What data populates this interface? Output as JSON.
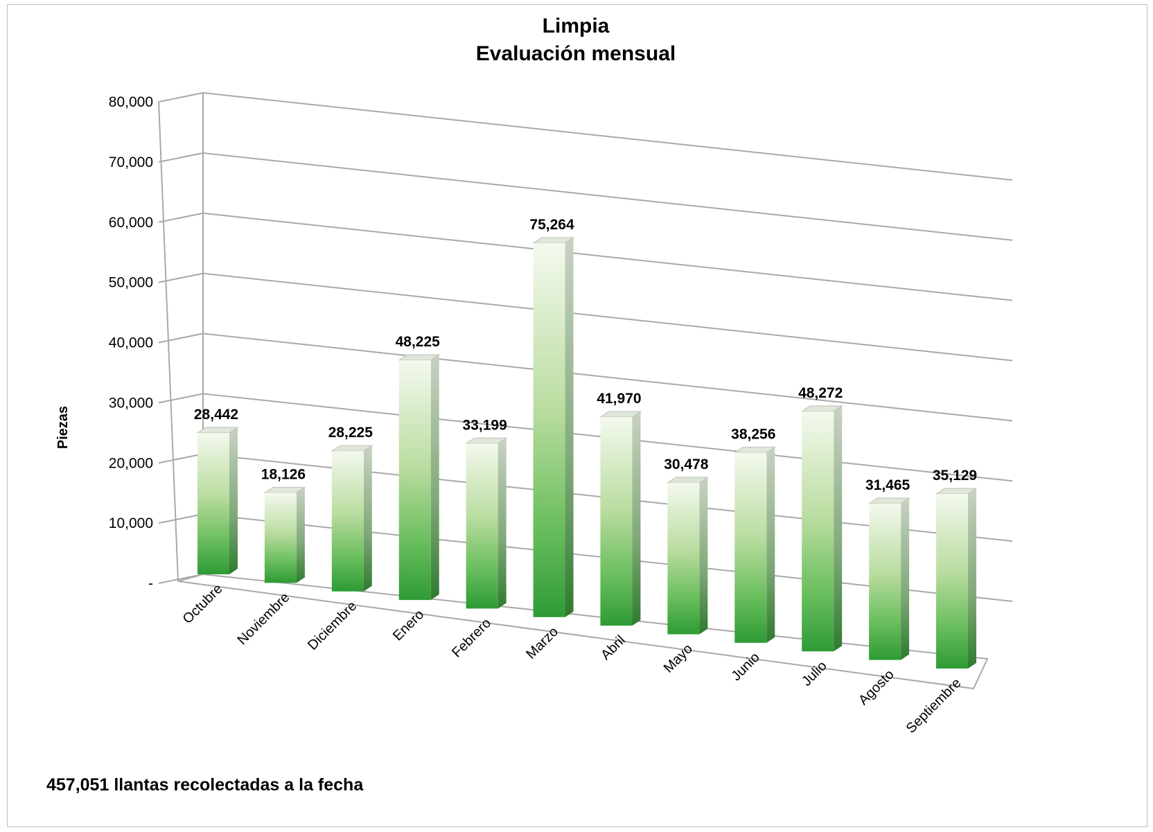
{
  "chart_data": {
    "type": "bar",
    "title": [
      "Limpia",
      "Evaluación mensual"
    ],
    "ylabel": "Piezas",
    "xlabel": "",
    "categories": [
      "Octubre",
      "Noviembre",
      "Diciembre",
      "Enero",
      "Febrero",
      "Marzo",
      "Abril",
      "Mayo",
      "Junio",
      "Julio",
      "Agosto",
      "Septiembre"
    ],
    "values": [
      28442,
      18126,
      28225,
      48225,
      33199,
      75264,
      41970,
      30478,
      38256,
      48272,
      31465,
      35129
    ],
    "data_labels": [
      "28,442",
      "18,126",
      "28,225",
      "48,225",
      "33,199",
      "75,264",
      "41,970",
      "30,478",
      "38,256",
      "48,272",
      "31,465",
      "35,129"
    ],
    "ylim": [
      0,
      80000
    ],
    "yticks": [
      0,
      10000,
      20000,
      30000,
      40000,
      50000,
      60000,
      70000,
      80000
    ],
    "ytick_labels": [
      "-",
      "10,000",
      "20,000",
      "30,000",
      "40,000",
      "50,000",
      "60,000",
      "70,000",
      "80,000"
    ],
    "grid": true,
    "legend": "none",
    "style": "3d-column",
    "bar_color_top": "#f4f9ee",
    "bar_color_bottom": "#2e9b35"
  },
  "note": "457,051 llantas recolectadas a la fecha"
}
